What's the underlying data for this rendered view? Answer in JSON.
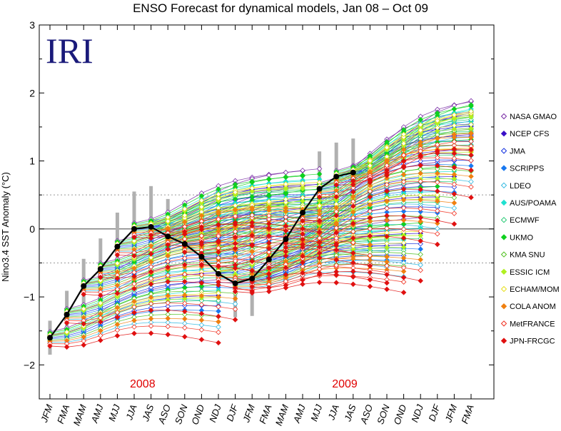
{
  "chart_data": {
    "type": "line",
    "title": "ENSO Forecast for dynamical models, Jan 08 – Oct 09",
    "ylabel": "Nino3.4 SST Anomaly (°C)",
    "logo": "IRI",
    "ylim": [
      -2.5,
      3
    ],
    "yticks": [
      -2,
      -1,
      0,
      1,
      2,
      3
    ],
    "dotted_lines": [
      0.5,
      -0.5
    ],
    "categories": [
      "JFM",
      "FMA",
      "MAM",
      "AMJ",
      "MJJ",
      "JJA",
      "JAS",
      "ASO",
      "SON",
      "OND",
      "NDJ",
      "DJF",
      "JFM",
      "FMA",
      "MAM",
      "AMJ",
      "MJJ",
      "JJA",
      "JAS",
      "ASO",
      "SON",
      "OND",
      "NDJ",
      "DJF",
      "JFM",
      "FMA"
    ],
    "year_labels": [
      {
        "text": "2008",
        "x": 5.5
      },
      {
        "text": "2009",
        "x": 17.5
      }
    ],
    "observed": {
      "color": "#000000",
      "values": [
        -1.6,
        -1.26,
        -0.84,
        -0.59,
        -0.26,
        0.0,
        0.03,
        -0.11,
        -0.22,
        -0.41,
        -0.66,
        -0.8,
        -0.73,
        -0.45,
        -0.15,
        0.24,
        0.59,
        0.77,
        0.83
      ]
    },
    "series": [
      {
        "name": "NASA GMAO",
        "color": "#7a2ea6",
        "marker": "diamond-open",
        "offset": 0.25
      },
      {
        "name": "NCEP CFS",
        "color": "#3a10c8",
        "marker": "diamond",
        "offset": 0.1
      },
      {
        "name": "JMA",
        "color": "#1230e0",
        "marker": "diamond-open",
        "offset": 0.0
      },
      {
        "name": "SCRIPPS",
        "color": "#1878f0",
        "marker": "diamond",
        "offset": -0.05
      },
      {
        "name": "LDEO",
        "color": "#30b8e0",
        "marker": "diamond-open",
        "offset": -0.2
      },
      {
        "name": "AUS/POAMA",
        "color": "#20e0d0",
        "marker": "diamond",
        "offset": 0.15
      },
      {
        "name": "ECMWF",
        "color": "#20c870",
        "marker": "diamond-open",
        "offset": 0.05
      },
      {
        "name": "UKMO",
        "color": "#10d020",
        "marker": "diamond",
        "offset": 0.2
      },
      {
        "name": "KMA SNU",
        "color": "#50c020",
        "marker": "diamond-open",
        "offset": -0.1
      },
      {
        "name": "ESSIC ICM",
        "color": "#b0f020",
        "marker": "diamond",
        "offset": 0.08
      },
      {
        "name": "ECHAM/MOM",
        "color": "#e8e020",
        "marker": "diamond-open",
        "offset": 0.12
      },
      {
        "name": "COLA ANOM",
        "color": "#f08010",
        "marker": "diamond",
        "offset": -0.15
      },
      {
        "name": "MetFRANCE",
        "color": "#f03020",
        "marker": "diamond-open",
        "offset": -0.25
      },
      {
        "name": "JPN-FRCGC",
        "color": "#e01010",
        "marker": "diamond",
        "offset": -0.35
      }
    ]
  }
}
